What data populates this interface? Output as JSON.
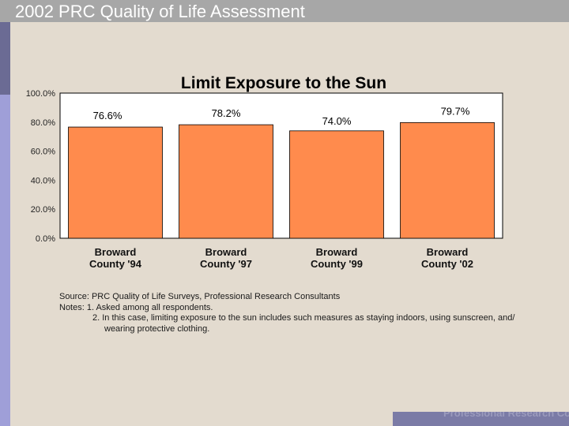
{
  "header": {
    "title": "2002 PRC Quality of Life Assessment"
  },
  "chart_data": {
    "type": "bar",
    "title": "Limit Exposure to the Sun",
    "categories": [
      "Broward County '94",
      "Broward County '97",
      "Broward County '99",
      "Broward County '02"
    ],
    "category_lines": [
      [
        "Broward",
        "County '94"
      ],
      [
        "Broward",
        "County '97"
      ],
      [
        "Broward",
        "County '99"
      ],
      [
        "Broward",
        "County '02"
      ]
    ],
    "values": [
      76.6,
      78.2,
      74.0,
      79.7
    ],
    "value_labels": [
      "76.6%",
      "78.2%",
      "74.0%",
      "79.7%"
    ],
    "y_ticks": [
      0,
      20,
      40,
      60,
      80,
      100
    ],
    "y_tick_labels": [
      "0.0%",
      "20.0%",
      "40.0%",
      "60.0%",
      "80.0%",
      "100.0%"
    ],
    "ylim": [
      0,
      100
    ],
    "xlabel": "",
    "ylabel": "",
    "grid": false,
    "bar_color": "#ff8b4d",
    "plot_background": "#ffffff"
  },
  "notes": {
    "source": "Source: PRC Quality of Life Surveys, Professional Research Consultants",
    "notes_label": "Notes:   1. Asked among all respondents.",
    "note2_line1": "2. In this case, limiting exposure to the sun includes such measures as staying indoors, using sunscreen, and/",
    "note2_line2": "wearing protective clothing."
  },
  "footer": {
    "text": "Professional Research Consultants"
  }
}
